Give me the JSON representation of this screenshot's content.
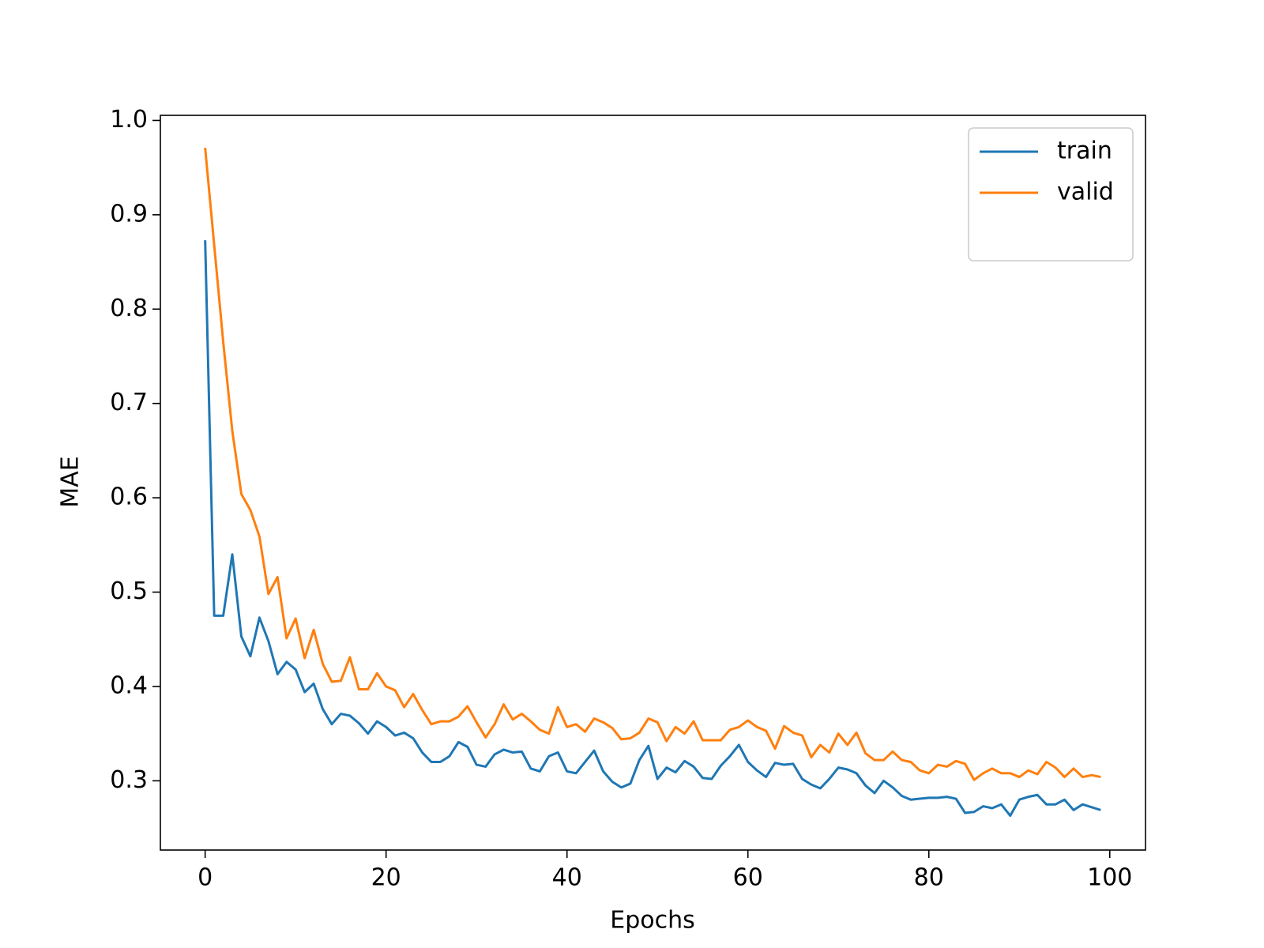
{
  "chart_data": {
    "type": "line",
    "xlabel": "Epochs",
    "ylabel": "MAE",
    "x": [
      0,
      1,
      2,
      3,
      4,
      5,
      6,
      7,
      8,
      9,
      10,
      11,
      12,
      13,
      14,
      15,
      16,
      17,
      18,
      19,
      20,
      21,
      22,
      23,
      24,
      25,
      26,
      27,
      28,
      29,
      30,
      31,
      32,
      33,
      34,
      35,
      36,
      37,
      38,
      39,
      40,
      41,
      42,
      43,
      44,
      45,
      46,
      47,
      48,
      49,
      50,
      51,
      52,
      53,
      54,
      55,
      56,
      57,
      58,
      59,
      60,
      61,
      62,
      63,
      64,
      65,
      66,
      67,
      68,
      69,
      70,
      71,
      72,
      73,
      74,
      75,
      76,
      77,
      78,
      79,
      80,
      81,
      82,
      83,
      84,
      85,
      86,
      87,
      88,
      89,
      90,
      91,
      92,
      93,
      94,
      95,
      96,
      97,
      98,
      99
    ],
    "series": [
      {
        "name": "train",
        "color": "#1f77b4",
        "values": [
          0.873,
          0.475,
          0.475,
          0.54,
          0.453,
          0.432,
          0.473,
          0.448,
          0.413,
          0.426,
          0.418,
          0.394,
          0.403,
          0.376,
          0.36,
          0.371,
          0.369,
          0.361,
          0.35,
          0.363,
          0.357,
          0.348,
          0.351,
          0.345,
          0.33,
          0.32,
          0.32,
          0.326,
          0.341,
          0.336,
          0.317,
          0.315,
          0.328,
          0.333,
          0.33,
          0.331,
          0.313,
          0.31,
          0.326,
          0.33,
          0.31,
          0.308,
          0.32,
          0.332,
          0.31,
          0.299,
          0.293,
          0.297,
          0.322,
          0.337,
          0.302,
          0.314,
          0.309,
          0.321,
          0.315,
          0.303,
          0.302,
          0.316,
          0.326,
          0.338,
          0.32,
          0.311,
          0.304,
          0.319,
          0.317,
          0.318,
          0.302,
          0.296,
          0.292,
          0.302,
          0.314,
          0.312,
          0.308,
          0.295,
          0.287,
          0.3,
          0.293,
          0.284,
          0.28,
          0.281,
          0.282,
          0.282,
          0.283,
          0.281,
          0.266,
          0.267,
          0.273,
          0.271,
          0.275,
          0.263,
          0.28,
          0.283,
          0.285,
          0.275,
          0.275,
          0.28,
          0.269,
          0.275,
          0.272,
          0.269
        ]
      },
      {
        "name": "valid",
        "color": "#ff7f0e",
        "values": [
          0.971,
          0.868,
          0.765,
          0.671,
          0.604,
          0.587,
          0.559,
          0.498,
          0.516,
          0.451,
          0.472,
          0.43,
          0.46,
          0.424,
          0.405,
          0.406,
          0.431,
          0.397,
          0.397,
          0.414,
          0.4,
          0.396,
          0.378,
          0.392,
          0.375,
          0.36,
          0.363,
          0.363,
          0.368,
          0.379,
          0.362,
          0.346,
          0.36,
          0.381,
          0.365,
          0.371,
          0.363,
          0.354,
          0.35,
          0.378,
          0.357,
          0.36,
          0.352,
          0.366,
          0.362,
          0.356,
          0.344,
          0.345,
          0.351,
          0.366,
          0.362,
          0.342,
          0.357,
          0.35,
          0.363,
          0.343,
          0.343,
          0.343,
          0.354,
          0.357,
          0.364,
          0.357,
          0.353,
          0.334,
          0.358,
          0.351,
          0.348,
          0.325,
          0.338,
          0.33,
          0.35,
          0.338,
          0.351,
          0.329,
          0.322,
          0.322,
          0.331,
          0.322,
          0.32,
          0.311,
          0.308,
          0.317,
          0.315,
          0.321,
          0.318,
          0.301,
          0.308,
          0.313,
          0.308,
          0.308,
          0.304,
          0.311,
          0.307,
          0.32,
          0.314,
          0.304,
          0.313,
          0.304,
          0.306,
          0.304
        ]
      }
    ],
    "xlim": [
      -4.95,
      103.95
    ],
    "ylim": [
      0.2266,
      1.0054
    ],
    "xticks": [
      0,
      20,
      40,
      60,
      80,
      100
    ],
    "yticks": [
      0.3,
      0.4,
      0.5,
      0.6,
      0.7,
      0.8,
      0.9,
      {
        "value": 1,
        "label": "1.0"
      }
    ],
    "legend": "upper right"
  }
}
